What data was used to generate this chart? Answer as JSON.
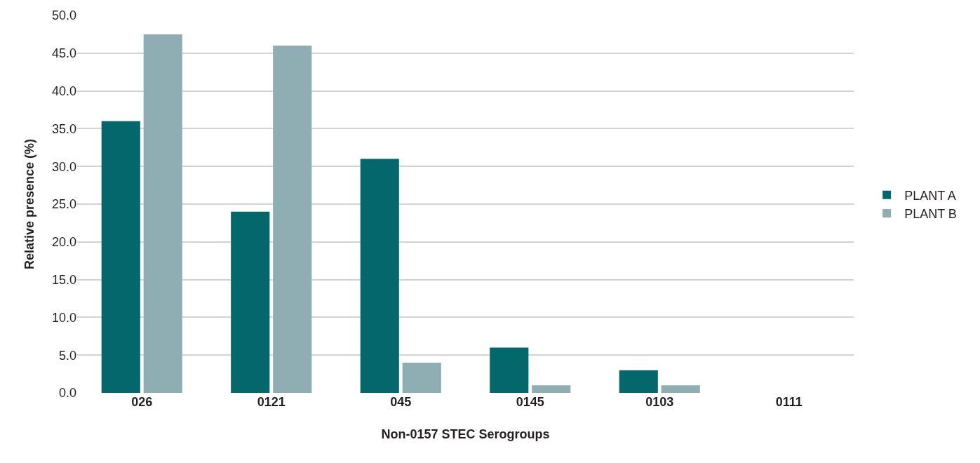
{
  "chart_data": {
    "type": "bar",
    "xlabel": "Non-0157 STEC Serogroups",
    "ylabel": "Relative presence (%)",
    "categories": [
      "026",
      "0121",
      "045",
      "0145",
      "0103",
      "0111"
    ],
    "series": [
      {
        "name": "PLANT A",
        "color": "#03676c",
        "values": [
          36,
          24,
          31,
          6,
          3,
          0
        ]
      },
      {
        "name": "PLANT B",
        "color": "#8faeb4",
        "values": [
          47.5,
          46,
          4,
          1,
          1,
          0
        ]
      }
    ],
    "ylim": [
      0,
      50
    ],
    "yticks": [
      {
        "value": 0,
        "label": "0.0"
      },
      {
        "value": 5,
        "label": "5.0"
      },
      {
        "value": 10,
        "label": "10.0"
      },
      {
        "value": 15,
        "label": "15.0"
      },
      {
        "value": 20,
        "label": "20.0"
      },
      {
        "value": 25,
        "label": "25.0"
      },
      {
        "value": 30,
        "label": "30.0"
      },
      {
        "value": 35,
        "label": "35.0"
      },
      {
        "value": 40,
        "label": "40.0"
      },
      {
        "value": 45,
        "label": "45.0"
      },
      {
        "value": 50,
        "label": "50.0"
      }
    ],
    "grid": "y",
    "legend": "right"
  }
}
